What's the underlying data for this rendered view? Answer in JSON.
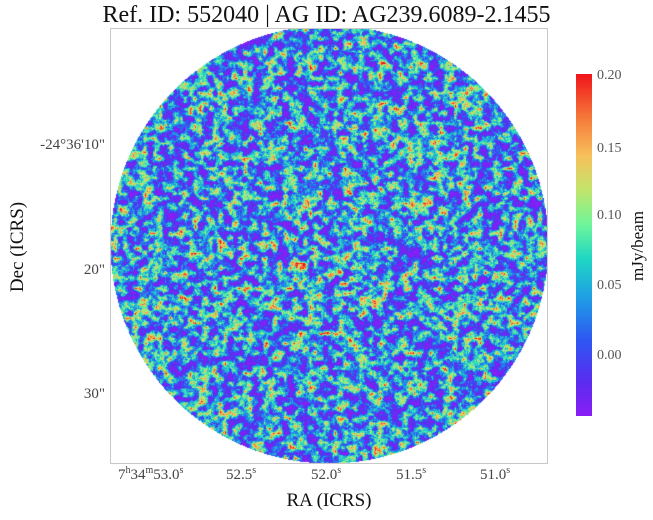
{
  "title": "Ref. ID: 552040 | AG ID: AG239.6089-2.1455",
  "axes": {
    "xlabel": "RA (ICRS)",
    "ylabel": "Dec (ICRS)",
    "yticks": [
      "-24°36'10\"",
      "20\"",
      "30\""
    ],
    "xticks": [
      {
        "h": "7",
        "m": "34",
        "s": "53.0"
      },
      {
        "s": "52.5"
      },
      {
        "s": "52.0"
      },
      {
        "s": "51.5"
      },
      {
        "s": "51.0"
      }
    ]
  },
  "colorbar": {
    "label": "mJy/beam",
    "ticks": [
      "0.20",
      "0.15",
      "0.10",
      "0.05",
      "0.00"
    ],
    "colors": [
      "#8a1ef6",
      "#5a2cf0",
      "#2f56f2",
      "#1f9be6",
      "#1fd7c3",
      "#6ff59a",
      "#c1e56c",
      "#f7c05b",
      "#f57a3a",
      "#f0141a"
    ]
  }
}
